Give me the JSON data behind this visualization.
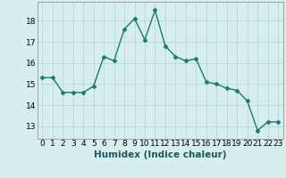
{
  "x": [
    0,
    1,
    2,
    3,
    4,
    5,
    6,
    7,
    8,
    9,
    10,
    11,
    12,
    13,
    14,
    15,
    16,
    17,
    18,
    19,
    20,
    21,
    22,
    23
  ],
  "y": [
    15.3,
    15.3,
    14.6,
    14.6,
    14.6,
    14.9,
    16.3,
    16.1,
    17.6,
    18.1,
    17.1,
    18.5,
    16.8,
    16.3,
    16.1,
    16.2,
    15.1,
    15.0,
    14.8,
    14.7,
    14.2,
    12.8,
    13.2,
    13.2
  ],
  "line_color": "#1a7a6e",
  "marker": "D",
  "marker_size": 2.5,
  "line_width": 1.0,
  "bg_color": "#d6eeee",
  "grid_color": "#b8d8d8",
  "xlabel": "Humidex (Indice chaleur)",
  "xlabel_fontsize": 7.5,
  "yticks": [
    13,
    14,
    15,
    16,
    17,
    18
  ],
  "xticks": [
    0,
    1,
    2,
    3,
    4,
    5,
    6,
    7,
    8,
    9,
    10,
    11,
    12,
    13,
    14,
    15,
    16,
    17,
    18,
    19,
    20,
    21,
    22,
    23
  ],
  "ylim": [
    12.4,
    18.9
  ],
  "xlim": [
    -0.5,
    23.5
  ],
  "tick_fontsize": 6.5
}
